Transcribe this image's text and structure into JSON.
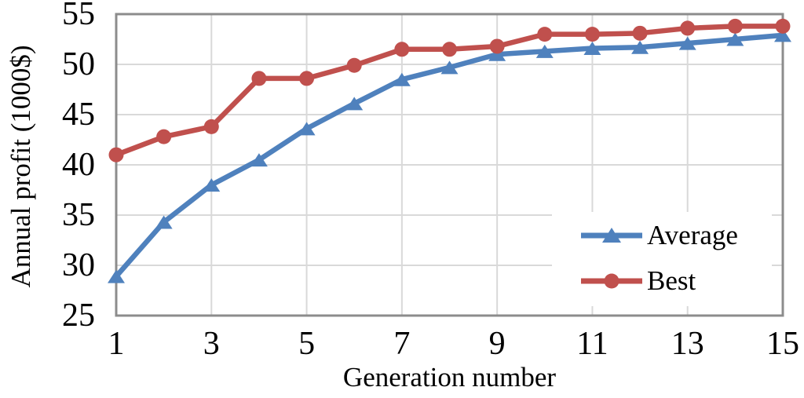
{
  "chart_data": {
    "type": "line",
    "title": "",
    "xlabel": "Generation number",
    "ylabel": "Annual profit (1000$)",
    "x": [
      1,
      2,
      3,
      4,
      5,
      6,
      7,
      8,
      9,
      10,
      11,
      12,
      13,
      14,
      15
    ],
    "series": [
      {
        "name": "Average",
        "marker": "triangle",
        "color": "#4F81BD",
        "values": [
          28.9,
          34.3,
          38.0,
          40.5,
          43.6,
          46.1,
          48.5,
          49.7,
          51.0,
          51.3,
          51.6,
          51.7,
          52.1,
          52.5,
          52.9
        ]
      },
      {
        "name": "Best",
        "marker": "circle",
        "color": "#C0504D",
        "values": [
          41.0,
          42.8,
          43.8,
          48.6,
          48.6,
          49.9,
          51.5,
          51.5,
          51.8,
          53.0,
          53.0,
          53.1,
          53.6,
          53.8,
          53.8
        ]
      }
    ],
    "xlim": [
      1,
      15
    ],
    "ylim": [
      25,
      55
    ],
    "xticks": [
      1,
      3,
      5,
      7,
      9,
      11,
      13,
      15
    ],
    "yticks": [
      25,
      30,
      35,
      40,
      45,
      50,
      55
    ],
    "grid": true,
    "legend_position": "inside right",
    "colors": {
      "gridline": "#D9D9D9",
      "frame": "#8C8C8C",
      "text": "#000000",
      "plot_background": "#FFFFFF",
      "legend_background": "#FFFFFF"
    }
  }
}
